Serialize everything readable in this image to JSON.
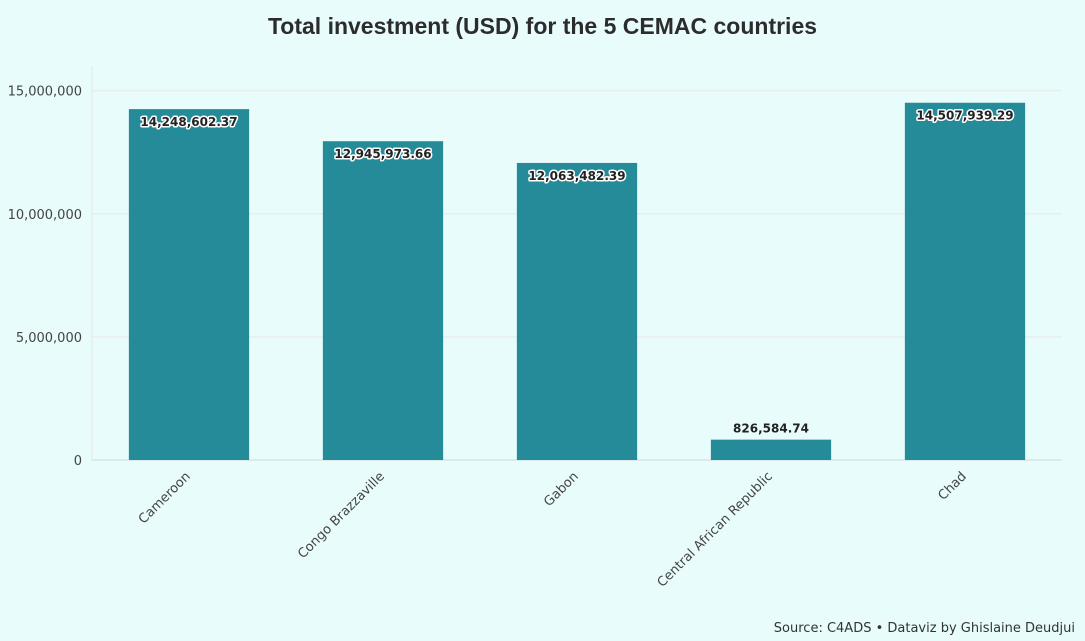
{
  "colors": {
    "background": "#e8fcfc",
    "bar": "#268b99",
    "grid": "#e6eeee",
    "text": "#444444"
  },
  "chart_data": {
    "type": "bar",
    "title": "Total investment (USD) for the 5 CEMAC countries",
    "xlabel": "",
    "ylabel": "",
    "categories": [
      "Cameroon",
      "Congo Brazzaville",
      "Gabon",
      "Central African Republic",
      "Chad"
    ],
    "values": [
      14248602.37,
      12945973.66,
      12063482.39,
      826584.74,
      14507939.29
    ],
    "data_labels": [
      "14,248,602.37",
      "12,945,973.66",
      "12,063,482.39",
      "826,584.74",
      "14,507,939.29"
    ],
    "yticks": [
      0,
      5000000,
      10000000,
      15000000
    ],
    "ytick_labels": [
      "0",
      "5,000,000",
      "10,000,000",
      "15,000,000"
    ],
    "ylim": [
      0,
      16000000
    ],
    "grid": true,
    "legend": "none",
    "source": "Source: C4ADS • Dataviz by Ghislaine Deudjui"
  }
}
